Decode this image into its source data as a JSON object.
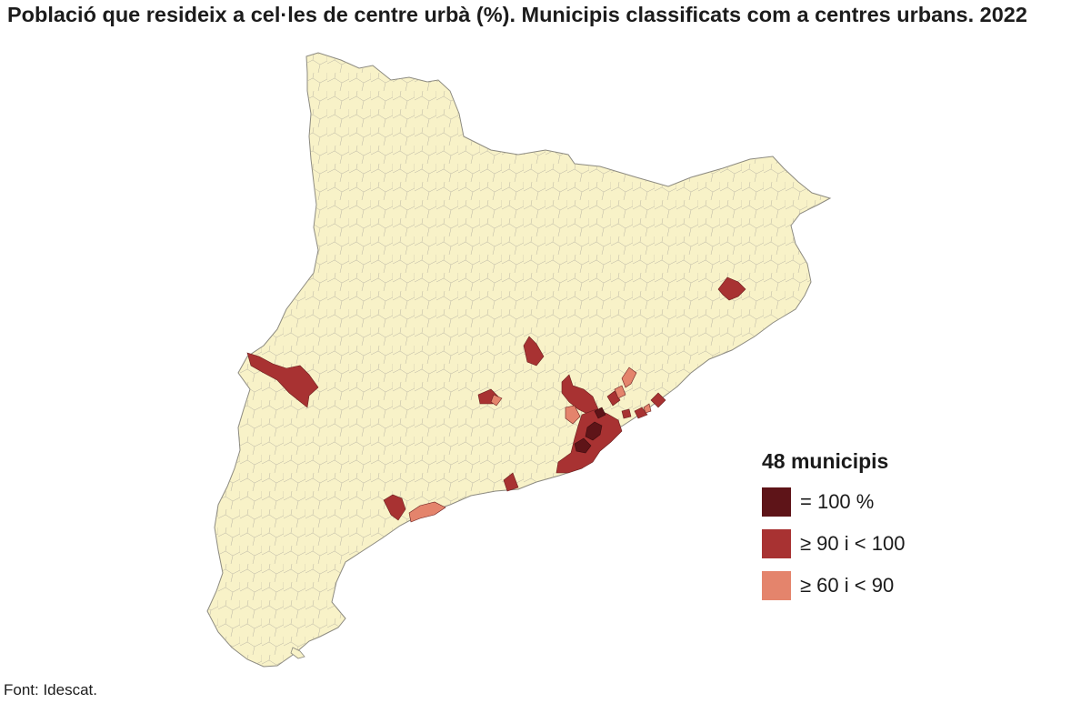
{
  "title": "Població que resideix a cel·les de centre urbà (%). Municipis classificats com a centres urbans. 2022",
  "legend": {
    "title": "48 municipis",
    "items": [
      {
        "label": "= 100 %",
        "color": "#5e1418"
      },
      {
        "label": "≥ 90 i < 100",
        "color": "#a83232"
      },
      {
        "label": "≥ 60 i < 90",
        "color": "#e4846c"
      }
    ]
  },
  "source": "Font: Idescat.",
  "colors": {
    "land": "#f8f2c8",
    "border": "#8c8a80"
  }
}
